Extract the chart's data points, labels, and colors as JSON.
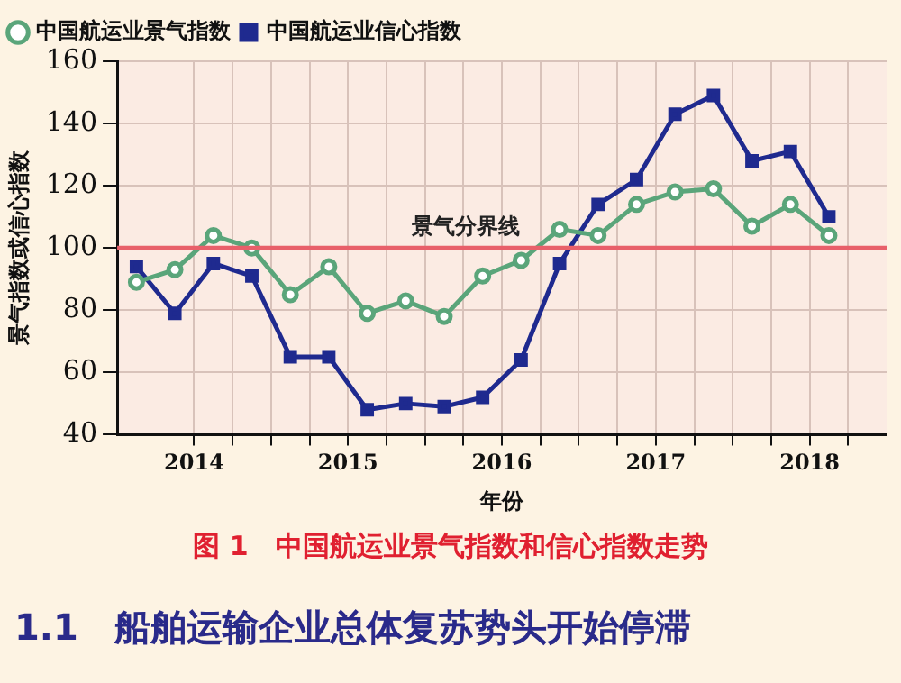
{
  "chart_data": {
    "type": "line",
    "title": "图 1　中国航运业景气指数和信心指数走势",
    "xlabel": "年份",
    "ylabel": "景气指数或信心指数",
    "annotations": [
      "1.1　船舶运输企业总体复苏势头开始停滞"
    ],
    "x": [
      2013.625,
      2013.875,
      2014.125,
      2014.375,
      2014.625,
      2014.875,
      2015.125,
      2015.375,
      2015.625,
      2015.875,
      2016.125,
      2016.375,
      2016.625,
      2016.875,
      2017.125,
      2017.375,
      2017.625,
      2017.875,
      2018.125
    ],
    "series": [
      {
        "name": "中国航运业景气指数",
        "color": "#5aa57a",
        "marker": "circle",
        "values": [
          89,
          93,
          104,
          100,
          85,
          94,
          79,
          83,
          78,
          91,
          96,
          106,
          104,
          114,
          118,
          119,
          107,
          114,
          104
        ]
      },
      {
        "name": "中国航运业信心指数",
        "color": "#1f2a8f",
        "marker": "square",
        "values": [
          94,
          79,
          95,
          91,
          65,
          65,
          48,
          50,
          49,
          52,
          64,
          95,
          114,
          122,
          143,
          149,
          128,
          131,
          110
        ]
      }
    ],
    "xlim": [
      2013.5,
      2018.5
    ],
    "xticks": [
      {
        "value": 2014,
        "label": "2014"
      },
      {
        "value": 2014.25,
        "label": null
      },
      {
        "value": 2014.5,
        "label": null
      },
      {
        "value": 2014.75,
        "label": null
      },
      {
        "value": 2015,
        "label": "2015"
      },
      {
        "value": 2015.25,
        "label": null
      },
      {
        "value": 2015.5,
        "label": null
      },
      {
        "value": 2015.75,
        "label": null
      },
      {
        "value": 2016,
        "label": "2016"
      },
      {
        "value": 2016.25,
        "label": null
      },
      {
        "value": 2016.5,
        "label": null
      },
      {
        "value": 2016.75,
        "label": null
      },
      {
        "value": 2017,
        "label": "2017"
      },
      {
        "value": 2017.25,
        "label": null
      },
      {
        "value": 2017.5,
        "label": null
      },
      {
        "value": 2017.75,
        "label": null
      },
      {
        "value": 2018,
        "label": "2018"
      },
      {
        "value": 2018.25,
        "label": null
      }
    ],
    "ylim": [
      40,
      160
    ],
    "yticks": [
      40,
      60,
      80,
      100,
      120,
      140,
      160
    ],
    "ref_lines": [
      {
        "axis": "y",
        "value": 100,
        "label": "景气分界线",
        "color": "#e8606a"
      }
    ],
    "grid": true,
    "legend": "top left",
    "line_style": "solid"
  }
}
